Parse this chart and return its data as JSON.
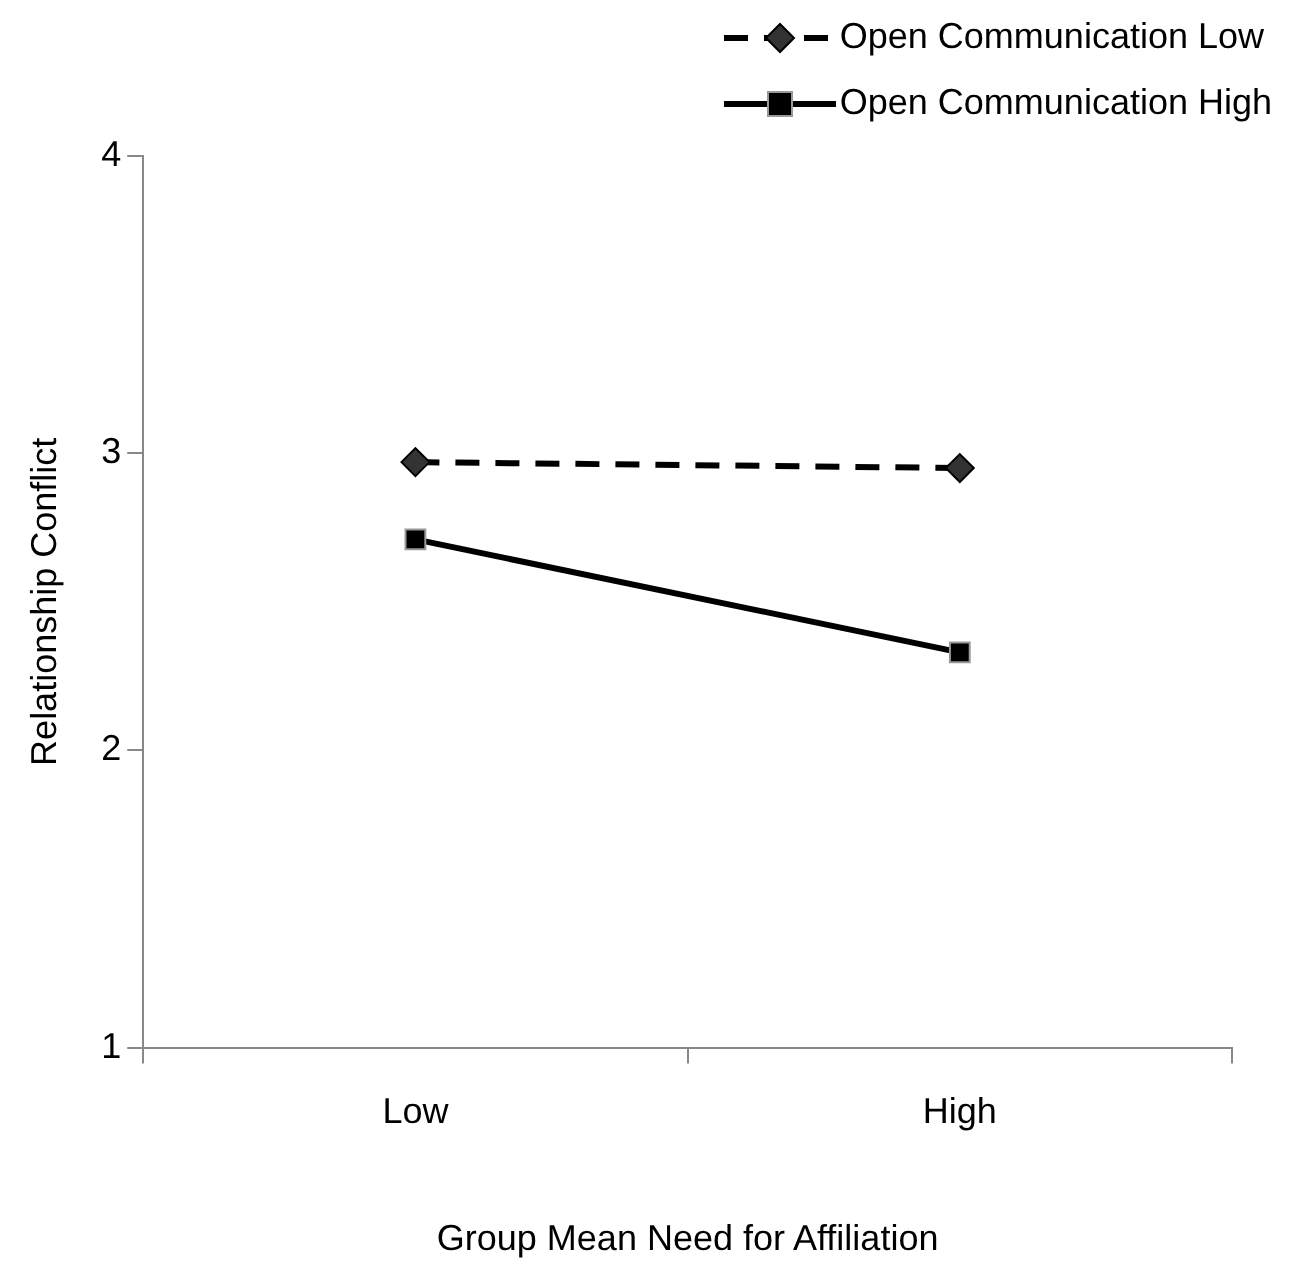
{
  "chart_data": {
    "type": "line",
    "xlabel": "Group Mean Need for Affiliation",
    "ylabel": "Relationship Conflict",
    "categories": [
      "Low",
      "High"
    ],
    "ylim": [
      1,
      4
    ],
    "yticks": [
      1,
      2,
      3,
      4
    ],
    "grid": false,
    "legend": "top right",
    "series": [
      {
        "name": "Open Communication Low",
        "color": "#000000",
        "values": [
          2.97,
          2.95
        ],
        "marker": "diamond",
        "line_style": "dashed"
      },
      {
        "name": "Open Communication High",
        "color": "#000000",
        "values": [
          2.71,
          2.33
        ],
        "marker": "square",
        "line_style": "solid"
      }
    ]
  }
}
